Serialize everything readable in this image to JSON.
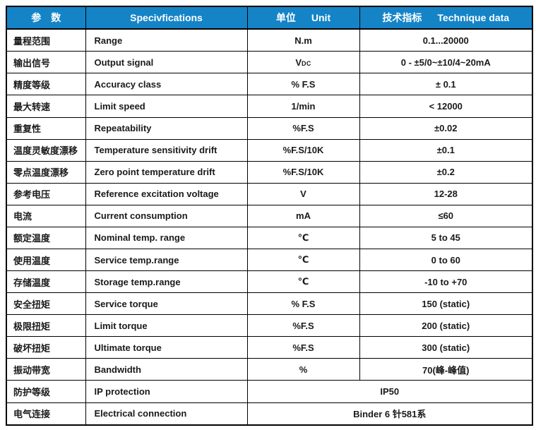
{
  "header": {
    "param_zh": "参　数",
    "spec_en": "Specivfications",
    "unit_zh": "单位",
    "unit_en": "Unit",
    "data_zh": "技术指标",
    "data_en": "Technique data"
  },
  "colors": {
    "header_bg": "#1484c7",
    "header_text": "#ffffff",
    "border": "#000000",
    "text": "#1a1a1a"
  },
  "rows": [
    {
      "zh": "量程范围",
      "en": "Range",
      "unit": "N.m",
      "val": "0.1...20000"
    },
    {
      "zh": "输出信号",
      "en": "Output signal",
      "unit": "V",
      "unit_small": "DC",
      "val": "0 - ±5/0~±10/4~20mA"
    },
    {
      "zh": "精度等级",
      "en": "Accuracy class",
      "unit": "% F.S",
      "val": "± 0.1"
    },
    {
      "zh": "最大转速",
      "en": "Limit speed",
      "unit": "1/min",
      "val": "< 12000"
    },
    {
      "zh": "重复性",
      "en": "Repeatability",
      "unit": "%F.S",
      "val": "±0.02"
    },
    {
      "zh": "温度灵敏度漂移",
      "en": "Temperature sensitivity drift",
      "unit": "%F.S/10K",
      "val": "±0.1"
    },
    {
      "zh": "零点温度漂移",
      "en": "Zero point temperature drift",
      "unit": "%F.S/10K",
      "val": "±0.2"
    },
    {
      "zh": "参考电压",
      "en": "Reference excitation voltage",
      "unit": "V",
      "val": "12-28"
    },
    {
      "zh": "电流",
      "en": "Current consumption",
      "unit": "mA",
      "val": "≤60"
    },
    {
      "zh": "额定温度",
      "en": "Nominal temp. range",
      "unit": "℃",
      "val": "5 to 45"
    },
    {
      "zh": "使用温度",
      "en": "Service temp.range",
      "unit": "℃",
      "val": "0 to 60"
    },
    {
      "zh": "存储温度",
      "en": "Storage temp.range",
      "unit": "℃",
      "val": "-10 to +70"
    },
    {
      "zh": "安全扭矩",
      "en": "Service torque",
      "unit": "% F.S",
      "val": "150 (static)"
    },
    {
      "zh": "极限扭矩",
      "en": "Limit torque",
      "unit": "%F.S",
      "val": "200 (static)"
    },
    {
      "zh": "破坏扭矩",
      "en": "Ultimate torque",
      "unit": "%F.S",
      "val": "300 (static)"
    },
    {
      "zh": "振动带宽",
      "en": "Bandwidth",
      "unit": "%",
      "val": "70(峰-峰值)"
    },
    {
      "zh": "防护等级",
      "en": "IP protection",
      "merged": "IP50"
    },
    {
      "zh": "电气连接",
      "en": "Electrical connection",
      "merged": "Binder 6 针581系"
    }
  ]
}
